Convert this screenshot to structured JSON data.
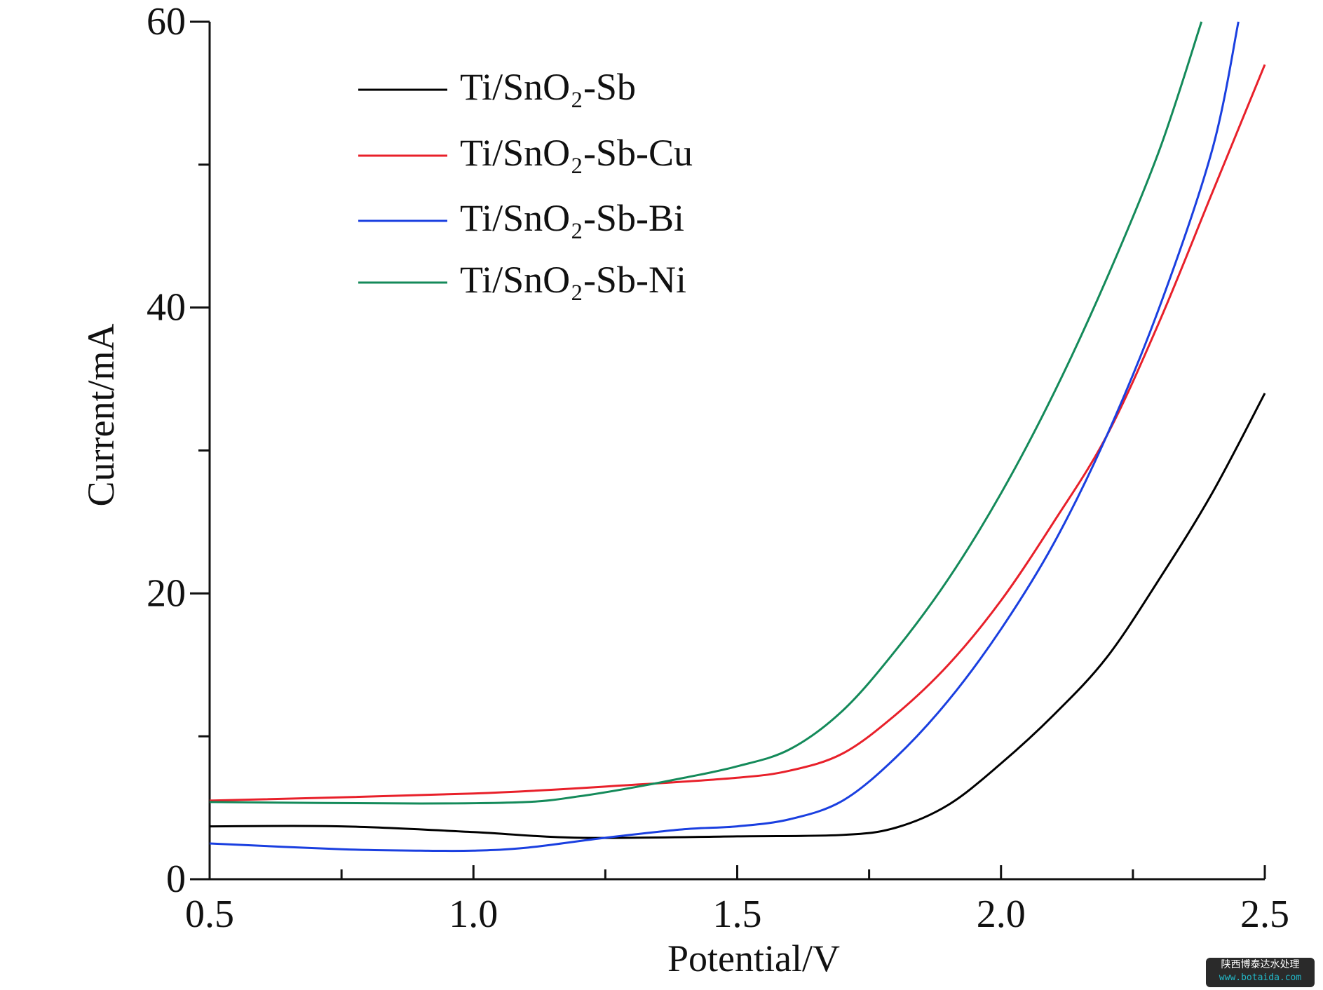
{
  "chart_data": {
    "type": "line",
    "title": "",
    "xlabel": "Potential/V",
    "ylabel": "Current/mA",
    "xlim": [
      0.5,
      2.5
    ],
    "ylim": [
      0,
      60
    ],
    "xticks": [
      "0.5",
      "1.0",
      "1.5",
      "2.0",
      "2.5"
    ],
    "yticks": [
      "0",
      "20",
      "40",
      "60"
    ],
    "grid": false,
    "legend_position": "top-left",
    "series": [
      {
        "name": "Ti/SnO₂-Sb",
        "color": "#000000",
        "x": [
          0.5,
          0.75,
          1.0,
          1.2,
          1.5,
          1.7,
          1.8,
          1.9,
          2.0,
          2.1,
          2.2,
          2.3,
          2.4,
          2.5
        ],
        "y": [
          3.7,
          3.7,
          3.3,
          2.9,
          3.0,
          3.1,
          3.6,
          5.2,
          8.1,
          11.5,
          15.5,
          21,
          27,
          34
        ]
      },
      {
        "name": "Ti/SnO₂-Sb-Cu",
        "color": "#e8202a",
        "x": [
          0.5,
          1.0,
          1.3,
          1.5,
          1.6,
          1.7,
          1.8,
          1.9,
          2.0,
          2.1,
          2.2,
          2.3,
          2.4,
          2.5
        ],
        "y": [
          5.5,
          6.0,
          6.6,
          7.1,
          7.6,
          8.8,
          11.5,
          15,
          19.5,
          25,
          31,
          39,
          48,
          57
        ]
      },
      {
        "name": "Ti/SnO₂-Sb-Bi",
        "color": "#1a3fe0",
        "x": [
          0.5,
          0.75,
          0.9,
          1.0,
          1.1,
          1.25,
          1.4,
          1.5,
          1.6,
          1.7,
          1.8,
          1.9,
          2.0,
          2.1,
          2.2,
          2.3,
          2.4,
          2.45
        ],
        "y": [
          2.5,
          2.1,
          2.0,
          2.0,
          2.2,
          2.9,
          3.5,
          3.7,
          4.2,
          5.5,
          8.5,
          12.5,
          17.5,
          23.5,
          31,
          40,
          51,
          60
        ]
      },
      {
        "name": "Ti/SnO₂-Sb-Ni",
        "color": "#148a5a",
        "x": [
          0.5,
          0.9,
          1.1,
          1.2,
          1.3,
          1.4,
          1.5,
          1.6,
          1.7,
          1.8,
          1.9,
          2.0,
          2.1,
          2.2,
          2.3,
          2.38
        ],
        "y": [
          5.4,
          5.3,
          5.4,
          5.8,
          6.4,
          7.1,
          7.9,
          9.1,
          11.8,
          16,
          21,
          27,
          34,
          42,
          51,
          60
        ]
      }
    ]
  },
  "watermark": {
    "name": "陕西博泰达水处理",
    "url": "www.botaida.com"
  }
}
